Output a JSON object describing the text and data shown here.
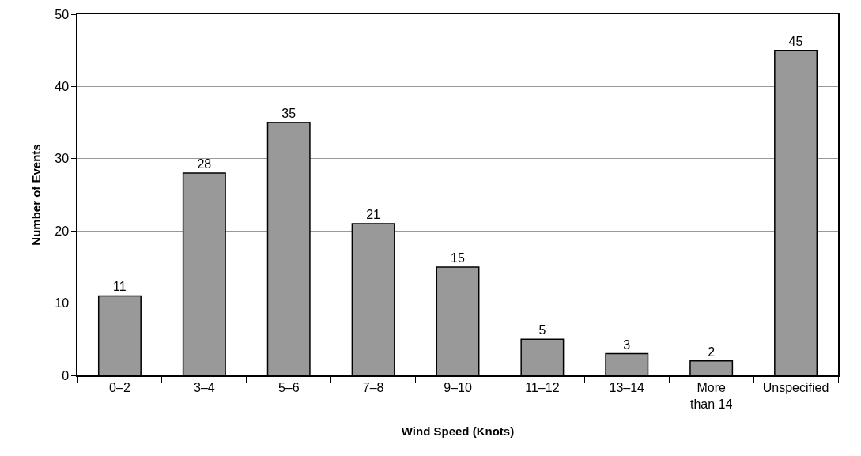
{
  "chart_data": {
    "type": "bar",
    "xlabel": "Wind Speed (Knots)",
    "ylabel": "Number of Events",
    "categories": [
      "0–2",
      "3–4",
      "5–6",
      "7–8",
      "9–10",
      "11–12",
      "13–14",
      "More than 14",
      "Unspecified"
    ],
    "values": [
      11,
      28,
      35,
      21,
      15,
      5,
      3,
      2,
      45
    ],
    "color": "#999999",
    "ylim": [
      0,
      50
    ],
    "yticks": [
      0,
      10,
      20,
      30,
      40,
      50
    ],
    "grid": "y",
    "data_labels": true
  }
}
